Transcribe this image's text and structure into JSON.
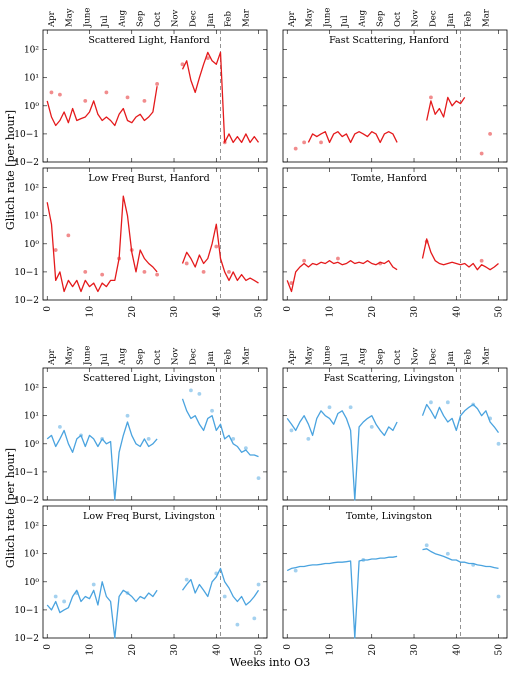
{
  "figure": {
    "ylabel": "Glitch rate [per hour]",
    "xlabel": "Weeks into O3",
    "months": [
      "Apr",
      "May",
      "June",
      "Jul",
      "Aug",
      "Sep",
      "Oct",
      "Nov",
      "Dec",
      "Jan",
      "Feb",
      "Mar"
    ],
    "x_ticks": [
      0,
      10,
      20,
      30,
      40,
      50
    ],
    "y_ticks": [
      "10−2",
      "10−1",
      "10⁰",
      "10¹",
      "10²"
    ],
    "colors": {
      "hanford": "#e41a1c",
      "livingston": "#4aa3df",
      "dashed": "#888888"
    }
  },
  "chart_data": [
    {
      "type": "line",
      "title": "Scattered Light, Hanford",
      "detector": "Hanford",
      "xlim": [
        -1,
        52
      ],
      "ylim": [
        0.01,
        500
      ],
      "yscale": "log",
      "vline": 41,
      "series": [
        {
          "x": [
            0,
            1,
            2,
            3,
            4,
            5,
            6,
            7,
            8,
            9,
            10,
            11,
            12,
            13,
            14,
            15,
            16,
            17,
            18,
            19,
            20,
            21,
            22,
            23,
            24,
            25,
            26,
            32,
            33,
            34,
            35,
            36,
            37,
            38,
            39,
            40,
            41,
            42,
            43,
            44,
            45,
            46,
            47,
            48,
            49,
            50
          ],
          "y": [
            1.5,
            0.4,
            0.2,
            0.3,
            0.6,
            0.25,
            0.8,
            0.3,
            0.35,
            0.4,
            0.6,
            1.5,
            0.5,
            0.3,
            0.4,
            0.3,
            0.2,
            0.5,
            0.8,
            0.3,
            0.25,
            0.4,
            0.5,
            0.3,
            0.4,
            0.6,
            5,
            20,
            40,
            8,
            3,
            10,
            30,
            80,
            40,
            30,
            80,
            0.05,
            0.1,
            0.05,
            0.08,
            0.05,
            0.1,
            0.05,
            0.08,
            0.05
          ]
        }
      ],
      "points": {
        "x": [
          1,
          3,
          9,
          14,
          19,
          23,
          26,
          32,
          38,
          42
        ],
        "y": [
          3,
          2.5,
          1.5,
          3,
          2,
          1.5,
          6,
          30,
          50,
          0.05
        ]
      }
    },
    {
      "type": "line",
      "title": "Fast Scattering, Hanford",
      "detector": "Hanford",
      "xlim": [
        -1,
        52
      ],
      "ylim": [
        0.01,
        500
      ],
      "yscale": "log",
      "vline": 41,
      "series": [
        {
          "x": [
            5,
            6,
            7,
            8,
            9,
            10,
            11,
            12,
            13,
            14,
            15,
            16,
            17,
            18,
            19,
            20,
            21,
            22,
            23,
            24,
            25,
            26,
            33,
            34,
            35,
            36,
            37,
            38,
            39,
            40,
            41,
            42
          ],
          "y": [
            0.05,
            0.1,
            0.08,
            0.1,
            0.12,
            0.05,
            0.1,
            0.12,
            0.08,
            0.1,
            0.05,
            0.1,
            0.12,
            0.1,
            0.08,
            0.12,
            0.1,
            0.05,
            0.1,
            0.12,
            0.1,
            0.05,
            0.3,
            1.5,
            0.5,
            0.8,
            0.4,
            2,
            1,
            1.5,
            1.2,
            2
          ]
        }
      ],
      "points": {
        "x": [
          2,
          4,
          8,
          46,
          48,
          34
        ],
        "y": [
          0.03,
          0.05,
          0.05,
          0.02,
          0.1,
          2
        ]
      }
    },
    {
      "type": "line",
      "title": "Low Freq Burst, Hanford",
      "detector": "Hanford",
      "xlim": [
        -1,
        52
      ],
      "ylim": [
        0.01,
        500
      ],
      "yscale": "log",
      "vline": 41,
      "series": [
        {
          "x": [
            0,
            1,
            2,
            3,
            4,
            5,
            6,
            7,
            8,
            9,
            10,
            11,
            12,
            13,
            14,
            15,
            16,
            17,
            18,
            19,
            20,
            21,
            22,
            23,
            24,
            25,
            26,
            32,
            33,
            34,
            35,
            36,
            37,
            38,
            39,
            40,
            41,
            42,
            43,
            44,
            45,
            46,
            47,
            48,
            49,
            50
          ],
          "y": [
            30,
            5,
            0.05,
            0.1,
            0.02,
            0.05,
            0.03,
            0.05,
            0.02,
            0.05,
            0.03,
            0.04,
            0.02,
            0.04,
            0.03,
            0.05,
            0.05,
            0.3,
            50,
            10,
            0.5,
            0.1,
            0.6,
            0.3,
            0.2,
            0.15,
            0.1,
            0.2,
            0.5,
            0.3,
            0.15,
            0.4,
            0.2,
            0.3,
            1,
            5,
            0.3,
            0.1,
            0.05,
            0.1,
            0.05,
            0.08,
            0.05,
            0.06,
            0.05,
            0.04
          ]
        }
      ],
      "points": {
        "x": [
          2,
          5,
          9,
          13,
          17,
          20,
          23,
          26,
          33,
          37,
          40,
          43
        ],
        "y": [
          0.6,
          2,
          0.1,
          0.08,
          0.3,
          0.6,
          0.1,
          0.08,
          0.2,
          0.1,
          0.8,
          0.1
        ]
      }
    },
    {
      "type": "line",
      "title": "Tomte, Hanford",
      "detector": "Hanford",
      "xlim": [
        -1,
        52
      ],
      "ylim": [
        0.01,
        500
      ],
      "yscale": "log",
      "vline": 41,
      "series": [
        {
          "x": [
            0,
            1,
            2,
            3,
            4,
            5,
            6,
            7,
            8,
            9,
            10,
            11,
            12,
            13,
            14,
            15,
            16,
            17,
            18,
            19,
            20,
            21,
            22,
            23,
            24,
            25,
            26,
            32,
            33,
            34,
            35,
            36,
            37,
            38,
            39,
            40,
            41,
            42,
            43,
            44,
            45,
            46,
            47,
            48,
            49,
            50
          ],
          "y": [
            0.05,
            0.02,
            0.1,
            0.15,
            0.2,
            0.15,
            0.2,
            0.18,
            0.22,
            0.2,
            0.25,
            0.2,
            0.22,
            0.18,
            0.2,
            0.25,
            0.2,
            0.22,
            0.2,
            0.25,
            0.2,
            0.18,
            0.22,
            0.2,
            0.25,
            0.15,
            0.12,
            0.3,
            1.5,
            0.5,
            0.25,
            0.2,
            0.18,
            0.2,
            0.22,
            0.2,
            0.18,
            0.2,
            0.15,
            0.2,
            0.12,
            0.18,
            0.15,
            0.12,
            0.15,
            0.2
          ]
        }
      ],
      "points": {
        "x": [
          1,
          4,
          12,
          22,
          33,
          46
        ],
        "y": [
          0.04,
          0.25,
          0.3,
          0.2,
          1.2,
          0.25
        ]
      }
    },
    {
      "type": "line",
      "title": "Scattered Light, Livingston",
      "detector": "Livingston",
      "xlim": [
        -1,
        52
      ],
      "ylim": [
        0.01,
        500
      ],
      "yscale": "log",
      "vline": 41,
      "series": [
        {
          "x": [
            0,
            1,
            2,
            3,
            4,
            5,
            6,
            7,
            8,
            9,
            10,
            11,
            12,
            13,
            14,
            15,
            16,
            17,
            18,
            19,
            20,
            21,
            22,
            23,
            24,
            25,
            26,
            32,
            33,
            34,
            35,
            36,
            37,
            38,
            39,
            40,
            41,
            42,
            43,
            44,
            45,
            46,
            47,
            48,
            49,
            50
          ],
          "y": [
            1.5,
            2,
            0.8,
            1.5,
            3,
            1,
            0.5,
            1.5,
            2,
            0.8,
            2,
            1.5,
            0.8,
            1.5,
            1,
            1.2,
            0.01,
            0.5,
            2,
            6,
            2,
            1,
            0.8,
            1.5,
            0.8,
            1,
            1.5,
            40,
            15,
            8,
            10,
            5,
            3,
            8,
            10,
            3,
            5,
            1.5,
            2,
            1,
            0.8,
            0.5,
            0.6,
            0.4,
            0.4,
            0.35
          ]
        }
      ],
      "points": {
        "x": [
          3,
          8,
          13,
          19,
          24,
          34,
          36,
          39,
          44,
          47,
          50
        ],
        "y": [
          4,
          2,
          1.5,
          10,
          1.5,
          80,
          60,
          15,
          1.5,
          0.7,
          0.06
        ]
      }
    },
    {
      "type": "line",
      "title": "Fast Scattering, Livingston",
      "detector": "Livingston",
      "xlim": [
        -1,
        52
      ],
      "ylim": [
        0.01,
        500
      ],
      "yscale": "log",
      "vline": 41,
      "series": [
        {
          "x": [
            0,
            1,
            2,
            3,
            4,
            5,
            6,
            7,
            8,
            9,
            10,
            11,
            12,
            13,
            14,
            15,
            16,
            17,
            18,
            19,
            20,
            21,
            22,
            23,
            24,
            25,
            26,
            32,
            33,
            34,
            35,
            36,
            37,
            38,
            39,
            40,
            41,
            42,
            43,
            44,
            45,
            46,
            47,
            48,
            49,
            50
          ],
          "y": [
            8,
            5,
            3,
            6,
            10,
            5,
            2,
            8,
            15,
            10,
            8,
            5,
            12,
            15,
            8,
            3,
            0.01,
            4,
            6,
            8,
            10,
            5,
            3,
            2,
            4,
            3,
            6,
            10,
            25,
            15,
            8,
            20,
            10,
            6,
            8,
            3,
            10,
            15,
            20,
            25,
            18,
            10,
            15,
            6,
            4,
            2.5
          ]
        }
      ],
      "points": {
        "x": [
          1,
          5,
          10,
          15,
          20,
          34,
          38,
          44,
          48,
          50
        ],
        "y": [
          3,
          1.5,
          20,
          20,
          4,
          30,
          30,
          25,
          8,
          1
        ]
      }
    },
    {
      "type": "line",
      "title": "Low Freq Burst, Livingston",
      "detector": "Livingston",
      "xlim": [
        -1,
        52
      ],
      "ylim": [
        0.01,
        500
      ],
      "yscale": "log",
      "vline": 41,
      "series": [
        {
          "x": [
            0,
            1,
            2,
            3,
            4,
            5,
            6,
            7,
            8,
            9,
            10,
            11,
            12,
            13,
            14,
            15,
            16,
            17,
            18,
            19,
            20,
            21,
            22,
            23,
            24,
            25,
            26,
            32,
            33,
            34,
            35,
            36,
            37,
            38,
            39,
            40,
            41,
            42,
            43,
            44,
            45,
            46,
            47,
            48,
            49,
            50
          ],
          "y": [
            0.15,
            0.1,
            0.2,
            0.08,
            0.1,
            0.12,
            0.3,
            0.5,
            0.2,
            0.3,
            0.25,
            0.5,
            0.15,
            1,
            0.3,
            0.2,
            0.01,
            0.3,
            0.5,
            0.4,
            0.3,
            0.2,
            0.3,
            0.25,
            0.4,
            0.3,
            0.5,
            0.5,
            0.8,
            1.2,
            0.4,
            0.8,
            0.5,
            0.3,
            1,
            1.5,
            3,
            1,
            0.6,
            0.3,
            0.2,
            0.3,
            0.15,
            0.2,
            0.3,
            0.5
          ]
        }
      ],
      "points": {
        "x": [
          2,
          4,
          7,
          11,
          19,
          33,
          40,
          42,
          45,
          49,
          50
        ],
        "y": [
          0.3,
          0.2,
          0.4,
          0.8,
          0.4,
          1.2,
          2,
          0.3,
          0.03,
          0.05,
          0.8
        ]
      }
    },
    {
      "type": "line",
      "title": "Tomte, Livingston",
      "detector": "Livingston",
      "xlim": [
        -1,
        52
      ],
      "ylim": [
        0.01,
        500
      ],
      "yscale": "log",
      "vline": 41,
      "series": [
        {
          "x": [
            0,
            1,
            2,
            3,
            4,
            5,
            6,
            7,
            8,
            9,
            10,
            11,
            12,
            13,
            14,
            15,
            16,
            17,
            18,
            19,
            20,
            21,
            22,
            23,
            24,
            25,
            26,
            32,
            33,
            34,
            35,
            36,
            37,
            38,
            39,
            40,
            41,
            42,
            43,
            44,
            45,
            46,
            47,
            48,
            49,
            50
          ],
          "y": [
            2.5,
            3,
            3.2,
            3.5,
            3.5,
            3.8,
            4,
            4,
            4.2,
            4.5,
            4.5,
            4.8,
            5,
            5,
            5.2,
            5.5,
            0.01,
            5.5,
            6,
            6,
            6.5,
            6.5,
            7,
            7,
            7.5,
            7.5,
            8,
            14,
            15,
            12,
            10,
            9,
            8,
            7,
            6,
            6,
            5,
            5,
            4.5,
            4.5,
            4,
            3.8,
            3.5,
            3.5,
            3.2,
            3
          ]
        }
      ],
      "points": {
        "x": [
          2,
          18,
          33,
          38,
          44,
          50
        ],
        "y": [
          2.5,
          6,
          20,
          10,
          4,
          0.3
        ]
      }
    }
  ]
}
